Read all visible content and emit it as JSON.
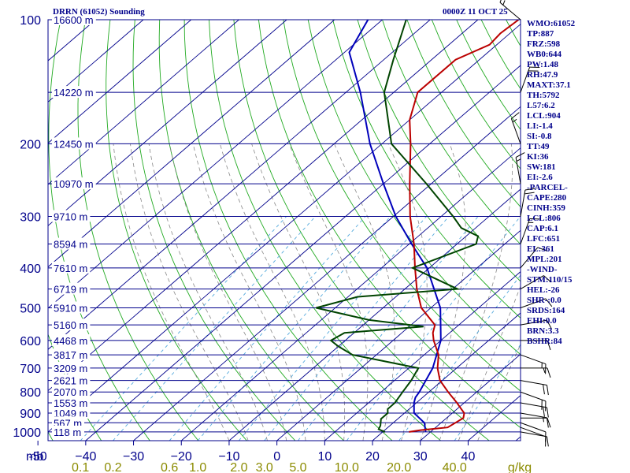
{
  "header": {
    "station": "DRRN (61052) Sounding",
    "time": "0000Z 11 OCT 25"
  },
  "indices": [
    "WMO:61052",
    "TP:887",
    "FRZ:598",
    "WB0:644",
    "PW:1.48",
    "RH:47.9",
    "MAXT:37.1",
    "TH:5792",
    "L57:6.2",
    "LCL:904",
    "LI:-1.4",
    "SI:-0.8",
    "TT:49",
    "KI:36",
    "SW:181",
    "EI:-2.6",
    "-PARCEL-",
    "CAPE:280",
    "CINH:359",
    "LCL:806",
    "CAP:6.1",
    "LFC:651",
    "EL:361",
    "MPL:201",
    "-WIND-",
    "STM:110/15",
    "HEL:-26",
    "SHR-:0.0",
    "SRDS:164",
    "EHI:0.0",
    "BRN:3.3",
    "BSHR:84"
  ],
  "colors": {
    "isobar": "#00008b",
    "isotherm": "#00008b",
    "dry_adiabat": "#22aa22",
    "moist_adiabat": "#888888",
    "mixing_ratio": "#55aadd",
    "temperature": "#bb0000",
    "dewpoint": "#004400",
    "parcel": "#0000bb",
    "axis_text": "#00008b",
    "mix_text": "#8b8b00",
    "barbs": "#000000"
  },
  "chart_data": {
    "type": "skew-t",
    "pressure_unit": "mb",
    "pressure_levels": [
      100,
      200,
      300,
      400,
      500,
      600,
      700,
      800,
      900,
      1000
    ],
    "pressure_tick_labels": [
      "100",
      "200",
      "300",
      "400",
      "500",
      "600",
      "700",
      "800",
      "900",
      "1000"
    ],
    "pressure_axis_label": "mb",
    "height_labels": [
      {
        "p": 100,
        "label": "16600 m"
      },
      {
        "p": 150,
        "label": "14220 m"
      },
      {
        "p": 200,
        "label": "12450 m"
      },
      {
        "p": 250,
        "label": "10970 m"
      },
      {
        "p": 300,
        "label": "9710 m"
      },
      {
        "p": 350,
        "label": "8594 m"
      },
      {
        "p": 400,
        "label": "7610 m"
      },
      {
        "p": 450,
        "label": "6719 m"
      },
      {
        "p": 500,
        "label": "5910 m"
      },
      {
        "p": 550,
        "label": "5160 m"
      },
      {
        "p": 600,
        "label": "4468 m"
      },
      {
        "p": 650,
        "label": "3817 m"
      },
      {
        "p": 700,
        "label": "3209 m"
      },
      {
        "p": 750,
        "label": "2621 m"
      },
      {
        "p": 800,
        "label": "2070 m"
      },
      {
        "p": 850,
        "label": "1553 m"
      },
      {
        "p": 900,
        "label": "1049 m"
      },
      {
        "p": 950,
        "label": "567 m"
      },
      {
        "p": 1000,
        "label": "118 m"
      }
    ],
    "temperature_ticks": [
      -50,
      -40,
      -30,
      -20,
      -10,
      0,
      10,
      20,
      30,
      40
    ],
    "temperature_tick_labels": [
      "-50",
      "−40",
      "−30",
      "−20",
      "−10",
      "0",
      "10",
      "20",
      "30",
      "40"
    ],
    "mixing_ratios": [
      0.1,
      0.2,
      0.6,
      1.0,
      2.0,
      3.0,
      5.0,
      10.0,
      20.0,
      40.0
    ],
    "mixing_ratio_labels": [
      "0.1",
      "0.2",
      "0.6",
      "1.0",
      "2.0",
      "3.0",
      "5.0",
      "10.0",
      "20.0",
      "40.0"
    ],
    "mixing_ratio_unit": "g/kg",
    "temperature_profile": [
      [
        1000,
        25.5
      ],
      [
        990,
        27.5
      ],
      [
        975,
        32.5
      ],
      [
        950,
        33.0
      ],
      [
        925,
        33.5
      ],
      [
        900,
        32.5
      ],
      [
        875,
        30.5
      ],
      [
        850,
        28.5
      ],
      [
        800,
        24.0
      ],
      [
        750,
        19.5
      ],
      [
        700,
        16.0
      ],
      [
        650,
        13.0
      ],
      [
        600,
        8.5
      ],
      [
        575,
        6.5
      ],
      [
        550,
        5.0
      ],
      [
        500,
        -2.0
      ],
      [
        450,
        -7.5
      ],
      [
        400,
        -13.0
      ],
      [
        350,
        -19.0
      ],
      [
        300,
        -26.5
      ],
      [
        250,
        -34.5
      ],
      [
        200,
        -44.0
      ],
      [
        175,
        -50.0
      ],
      [
        150,
        -55.0
      ],
      [
        125,
        -55.0
      ],
      [
        115,
        -51.5
      ],
      [
        108,
        -52.0
      ],
      [
        100,
        -51.5
      ]
    ],
    "dewpoint_profile": [
      [
        1000,
        20.5
      ],
      [
        985,
        18.5
      ],
      [
        965,
        18.0
      ],
      [
        930,
        16.5
      ],
      [
        900,
        16.5
      ],
      [
        880,
        15.5
      ],
      [
        850,
        15.5
      ],
      [
        800,
        14.5
      ],
      [
        750,
        13.5
      ],
      [
        700,
        12.0
      ],
      [
        650,
        -5.0
      ],
      [
        620,
        -10.0
      ],
      [
        600,
        -13.0
      ],
      [
        575,
        -12.0
      ],
      [
        555,
        3.0
      ],
      [
        535,
        -10.0
      ],
      [
        500,
        -24.0
      ],
      [
        470,
        -18.0
      ],
      [
        450,
        1.0
      ],
      [
        400,
        -13.5
      ],
      [
        350,
        -6.0
      ],
      [
        335,
        -7.5
      ],
      [
        320,
        -13.0
      ],
      [
        300,
        -17.5
      ],
      [
        250,
        -31.0
      ],
      [
        200,
        -48.0
      ],
      [
        150,
        -62.0
      ],
      [
        125,
        -68.0
      ],
      [
        110,
        -72.0
      ],
      [
        100,
        -75.0
      ]
    ],
    "parcel_profile": [
      [
        1000,
        29.0
      ],
      [
        950,
        26.5
      ],
      [
        900,
        22.0
      ],
      [
        850,
        19.5
      ],
      [
        825,
        18.5
      ],
      [
        800,
        18.0
      ],
      [
        700,
        15.0
      ],
      [
        600,
        10.0
      ],
      [
        500,
        2.0
      ],
      [
        400,
        -10.5
      ],
      [
        350,
        -19.5
      ],
      [
        300,
        -29.5
      ],
      [
        250,
        -40.0
      ],
      [
        200,
        -52.5
      ],
      [
        150,
        -67.0
      ],
      [
        120,
        -79.0
      ],
      [
        100,
        -83.0
      ]
    ],
    "wind_barbs": [
      {
        "p": 1000,
        "dir": 100,
        "spd": 10
      },
      {
        "p": 975,
        "dir": 110,
        "spd": 10
      },
      {
        "p": 950,
        "dir": 110,
        "spd": 10
      },
      {
        "p": 925,
        "dir": 90,
        "spd": 10
      },
      {
        "p": 900,
        "dir": 100,
        "spd": 15
      },
      {
        "p": 850,
        "dir": 100,
        "spd": 20
      },
      {
        "p": 800,
        "dir": 110,
        "spd": 20
      },
      {
        "p": 750,
        "dir": 100,
        "spd": 20
      },
      {
        "p": 700,
        "dir": 90,
        "spd": 15
      },
      {
        "p": 650,
        "dir": 110,
        "spd": 15
      },
      {
        "p": 600,
        "dir": 90,
        "spd": 10
      },
      {
        "p": 550,
        "dir": 80,
        "spd": 10
      },
      {
        "p": 500,
        "dir": 70,
        "spd": 10
      },
      {
        "p": 450,
        "dir": 60,
        "spd": 10
      },
      {
        "p": 400,
        "dir": 40,
        "spd": 10
      },
      {
        "p": 350,
        "dir": 20,
        "spd": 15
      },
      {
        "p": 300,
        "dir": 10,
        "spd": 20
      },
      {
        "p": 250,
        "dir": 350,
        "spd": 15
      },
      {
        "p": 200,
        "dir": 340,
        "spd": 15
      },
      {
        "p": 150,
        "dir": 20,
        "spd": 20
      },
      {
        "p": 100,
        "dir": 310,
        "spd": 15
      }
    ]
  }
}
